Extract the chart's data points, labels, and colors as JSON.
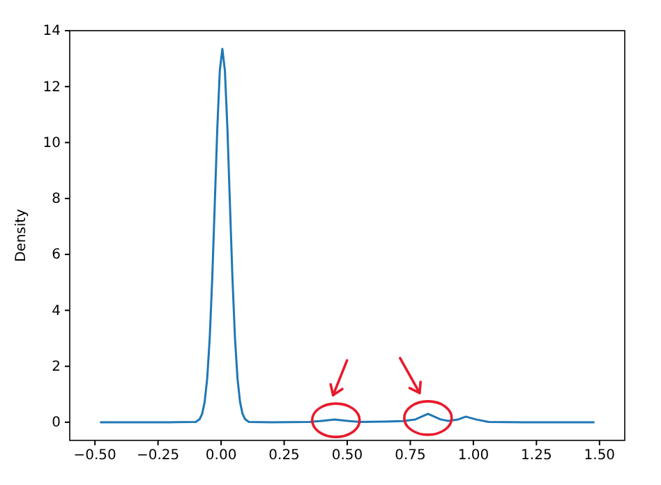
{
  "chart_data": {
    "type": "line",
    "ylabel": "Density",
    "x": [
      -0.48,
      -0.2,
      -0.1,
      -0.085,
      -0.075,
      -0.065,
      -0.055,
      -0.045,
      -0.035,
      -0.025,
      -0.015,
      -0.005,
      0.005,
      0.015,
      0.025,
      0.035,
      0.045,
      0.055,
      0.065,
      0.075,
      0.085,
      0.095,
      0.11,
      0.2,
      0.35,
      0.4,
      0.45,
      0.5,
      0.55,
      0.65,
      0.72,
      0.77,
      0.82,
      0.87,
      0.9,
      0.94,
      0.97,
      1.01,
      1.06,
      1.2,
      1.48
    ],
    "series": [
      {
        "color": "#1f77b4",
        "values": [
          0,
          0,
          0.01,
          0.11,
          0.3,
          0.73,
          1.57,
          3.02,
          5.16,
          7.82,
          10.52,
          12.58,
          13.35,
          12.58,
          10.52,
          7.82,
          5.16,
          3.02,
          1.57,
          0.73,
          0.3,
          0.11,
          0.01,
          0,
          0.01,
          0.05,
          0.1,
          0.05,
          0.01,
          0.02,
          0.04,
          0.1,
          0.3,
          0.1,
          0.05,
          0.1,
          0.2,
          0.1,
          0.01,
          0,
          0
        ]
      }
    ],
    "xlim": [
      -0.6,
      1.6
    ],
    "ylim": [
      -0.65,
      14
    ],
    "xticks": [
      {
        "value": -0.5,
        "label": "−0.50"
      },
      {
        "value": -0.25,
        "label": "−0.25"
      },
      {
        "value": 0,
        "label": "0.00"
      },
      {
        "value": 0.25,
        "label": "0.25"
      },
      {
        "value": 0.5,
        "label": "0.50"
      },
      {
        "value": 0.75,
        "label": "0.75"
      },
      {
        "value": 1,
        "label": "1.00"
      },
      {
        "value": 1.25,
        "label": "1.25"
      },
      {
        "value": 1.5,
        "label": "1.50"
      }
    ],
    "yticks": [
      0,
      2,
      4,
      6,
      8,
      10,
      12,
      14
    ],
    "grid": false,
    "marker": "none",
    "line_style": "solid"
  }
}
